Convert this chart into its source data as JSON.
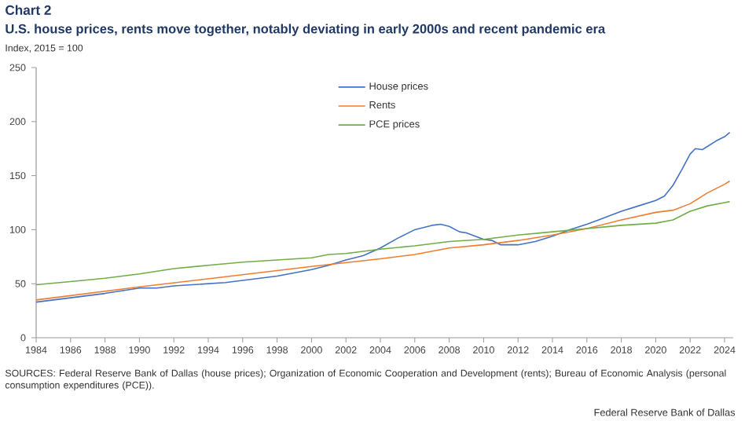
{
  "chart_data": {
    "type": "line",
    "title": "Chart 2",
    "subtitle": "U.S. house prices, rents move together, notably deviating in early 2000s and recent pandemic era",
    "ylabel": "Index,  2015 = 100",
    "annotations": [
      "SOURCES: Federal Reserve Bank of Dallas (house prices); Organization of Economic Cooperation and Development (rents); Bureau of Economic Analysis (personal consumption expenditures (PCE)).",
      "Federal Reserve Bank of Dallas"
    ],
    "xlim": [
      1984,
      2024.5
    ],
    "xticks": [
      1984,
      1986,
      1988,
      1990,
      1992,
      1994,
      1996,
      1998,
      2000,
      2002,
      2004,
      2006,
      2008,
      2010,
      2012,
      2014,
      2016,
      2018,
      2020,
      2022,
      2024
    ],
    "ylim": [
      0,
      250
    ],
    "yticks": [
      0,
      50,
      100,
      150,
      200,
      250
    ],
    "grid": false,
    "legend": "top",
    "marker": "none",
    "line_style": "solid",
    "series": [
      {
        "name": "House prices",
        "color": "#4472c4",
        "x": [
          1984,
          1986,
          1988,
          1990,
          1991,
          1992,
          1994,
          1995,
          1996,
          1998,
          2000,
          2001,
          2002,
          2003,
          2004,
          2005,
          2006,
          2007,
          2007.5,
          2008,
          2008.6,
          2009,
          2009.5,
          2010,
          2010.5,
          2011,
          2012,
          2013,
          2014,
          2015,
          2016,
          2017,
          2018,
          2019,
          2020,
          2020.5,
          2021,
          2021.5,
          2022,
          2022.3,
          2022.7,
          2023,
          2023.5,
          2024,
          2024.3
        ],
        "values": [
          33,
          37,
          41,
          46,
          46,
          48,
          50,
          51,
          53,
          57,
          63,
          67,
          72,
          76,
          83,
          92,
          100,
          104,
          105,
          103,
          98,
          97,
          94,
          91,
          90,
          86,
          86,
          89,
          94,
          100,
          105,
          111,
          117,
          122,
          127,
          131,
          141,
          155,
          170,
          175,
          174,
          177,
          182,
          186,
          190
        ]
      },
      {
        "name": "Rents",
        "color": "#ed7d31",
        "x": [
          1984,
          1990,
          2000,
          2004,
          2006,
          2008,
          2010,
          2012,
          2014,
          2016,
          2018,
          2020,
          2021,
          2022,
          2023,
          2024,
          2024.3
        ],
        "values": [
          35,
          47,
          66,
          73,
          77,
          83,
          86,
          90,
          95,
          101,
          109,
          116,
          118,
          124,
          134,
          142,
          145
        ]
      },
      {
        "name": "PCE prices",
        "color": "#70ad47",
        "x": [
          1984,
          1986,
          1988,
          1990,
          1992,
          1994,
          1996,
          1998,
          2000,
          2001,
          2002,
          2004,
          2006,
          2008,
          2010,
          2012,
          2014,
          2016,
          2018,
          2020,
          2021,
          2022,
          2023,
          2024,
          2024.3
        ],
        "values": [
          49,
          52,
          55,
          59,
          64,
          67,
          70,
          72,
          74,
          77,
          78,
          82,
          85,
          89,
          91,
          95,
          98,
          101,
          104,
          106,
          109,
          117,
          122,
          125,
          126
        ]
      }
    ]
  }
}
